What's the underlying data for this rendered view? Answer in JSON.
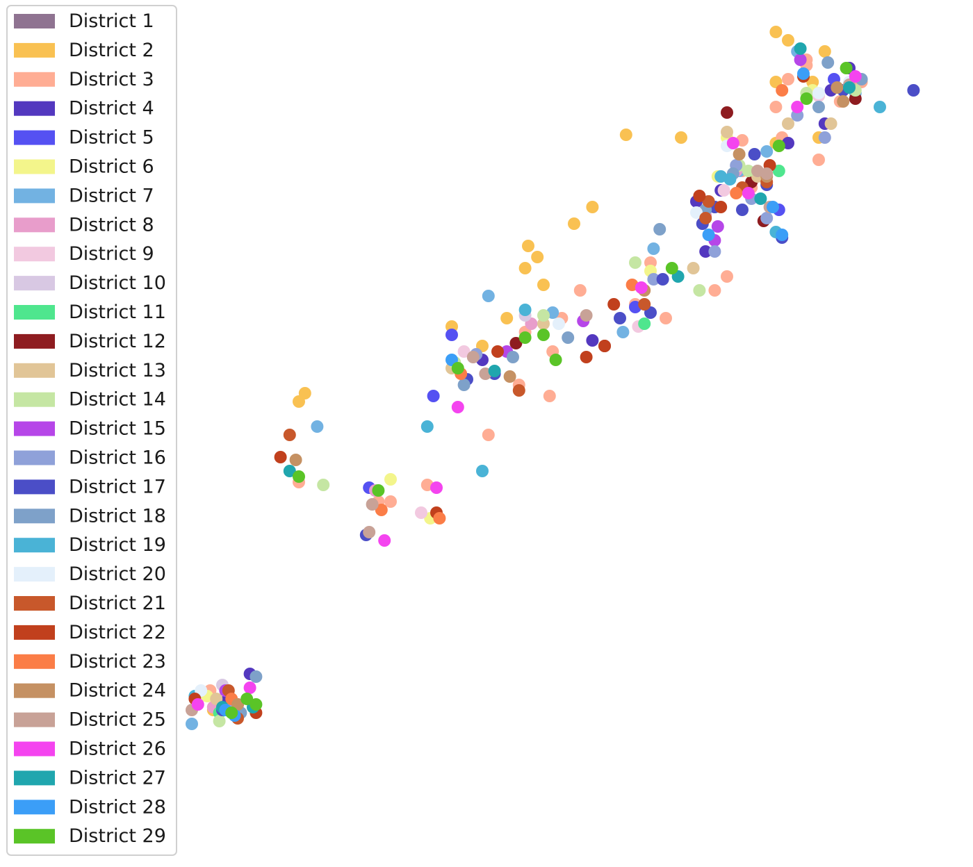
{
  "chart_data": {
    "type": "scatter",
    "title": "",
    "xlabel": "",
    "ylabel": "",
    "axes_visible": false,
    "grid": false,
    "legend": {
      "placement": "top-left",
      "marker": "rectangle"
    },
    "series": [
      {
        "name": "District 1",
        "color": "#8f7391",
        "points": []
      },
      {
        "name": "District 2",
        "color": "#f9c152",
        "points": [
          [
            0.2,
            0.9
          ],
          [
            3.2,
            12.3
          ],
          [
            3.0,
            12.0
          ],
          [
            8.0,
            14.7
          ],
          [
            9.8,
            15.0
          ],
          [
            9.0,
            14.0
          ],
          [
            10.5,
            17.6
          ],
          [
            12.6,
            19.0
          ],
          [
            10.4,
            16.8
          ],
          [
            10.8,
            17.2
          ],
          [
            12.0,
            18.4
          ],
          [
            13.7,
            21.6
          ],
          [
            11.0,
            16.2
          ],
          [
            15.5,
            21.5
          ],
          [
            18.6,
            25.3
          ],
          [
            19.0,
            25.0
          ],
          [
            18.6,
            23.5
          ],
          [
            20.2,
            24.6
          ],
          [
            18.6,
            21.3
          ],
          [
            19.8,
            23.5
          ],
          [
            20.0,
            21.5
          ]
        ]
      },
      {
        "name": "District 3",
        "color": "#ffad94",
        "points": [
          [
            0.1,
            1.6
          ],
          [
            3.0,
            9.1
          ],
          [
            5.6,
            8.4
          ],
          [
            6.0,
            8.4
          ],
          [
            7.2,
            9.0
          ],
          [
            9.2,
            10.8
          ],
          [
            10.2,
            12.6
          ],
          [
            10.4,
            14.5
          ],
          [
            11.6,
            15.0
          ],
          [
            14.0,
            15.5
          ],
          [
            15.0,
            15.0
          ],
          [
            11.3,
            13.8
          ],
          [
            11.2,
            12.2
          ],
          [
            12.2,
            16.0
          ],
          [
            14.5,
            17.0
          ],
          [
            16.2,
            18.4
          ],
          [
            17.5,
            21.4
          ],
          [
            17.8,
            19.7
          ],
          [
            17.5,
            20.3
          ],
          [
            18.6,
            22.6
          ],
          [
            19.6,
            24.3
          ],
          [
            18.8,
            21.5
          ],
          [
            21.0,
            24.0
          ],
          [
            19.0,
            23.6
          ],
          [
            17.0,
            16.5
          ],
          [
            16.6,
            16.0
          ],
          [
            19.6,
            24.1
          ],
          [
            20.0,
            20.7
          ],
          [
            20.7,
            22.8
          ],
          [
            21.4,
            23.5
          ]
        ]
      },
      {
        "name": "District 4",
        "color": "#5338bf",
        "points": [
          [
            0.6,
            1.2
          ],
          [
            1.4,
            2.2
          ],
          [
            9.0,
            13.5
          ],
          [
            16.0,
            19.2
          ],
          [
            16.8,
            19.6
          ],
          [
            19.0,
            21.3
          ],
          [
            20.4,
            23.2
          ],
          [
            20.2,
            22.0
          ],
          [
            21.0,
            24.0
          ],
          [
            12.6,
            14.2
          ],
          [
            16.3,
            17.4
          ]
        ]
      },
      {
        "name": "District 5",
        "color": "#5551f2",
        "points": [
          [
            5.3,
            8.9
          ],
          [
            8.0,
            14.4
          ],
          [
            7.4,
            12.2
          ],
          [
            14.0,
            15.4
          ],
          [
            20.5,
            23.6
          ],
          [
            18.7,
            18.9
          ]
        ]
      },
      {
        "name": "District 6",
        "color": "#f3f58b",
        "points": [
          [
            0.0,
            1.4
          ],
          [
            6.0,
            9.2
          ],
          [
            7.3,
            7.8
          ],
          [
            14.5,
            16.7
          ],
          [
            17.0,
            21.5
          ],
          [
            16.7,
            20.1
          ],
          [
            19.8,
            23.2
          ],
          [
            20.0,
            23.0
          ]
        ]
      },
      {
        "name": "District 7",
        "color": "#72b2e2",
        "points": [
          [
            -0.5,
            0.4
          ],
          [
            3.6,
            11.1
          ],
          [
            9.2,
            15.8
          ],
          [
            11.3,
            15.2
          ],
          [
            14.6,
            17.5
          ],
          [
            17.4,
            20.3
          ],
          [
            21.2,
            23.1
          ],
          [
            19.3,
            24.6
          ],
          [
            18.3,
            21.0
          ],
          [
            13.6,
            14.5
          ]
        ]
      },
      {
        "name": "District 8",
        "color": "#e89dcb",
        "points": [
          [
            0.2,
            1.0
          ],
          [
            5.5,
            8.8
          ],
          [
            10.6,
            14.8
          ],
          [
            16.3,
            18.7
          ],
          [
            17.3,
            20.3
          ]
        ]
      },
      {
        "name": "District 9",
        "color": "#f2c9e0",
        "points": [
          [
            7.0,
            8.0
          ],
          [
            8.4,
            13.8
          ],
          [
            14.1,
            14.7
          ],
          [
            16.9,
            19.6
          ],
          [
            20.0,
            23.0
          ]
        ]
      },
      {
        "name": "District 10",
        "color": "#d8c8e3",
        "points": [
          [
            0.5,
            1.8
          ],
          [
            10.4,
            15.1
          ]
        ]
      },
      {
        "name": "District 11",
        "color": "#4fe68e",
        "points": [
          [
            0.4,
            0.8
          ],
          [
            14.3,
            14.8
          ],
          [
            18.7,
            20.3
          ]
        ]
      },
      {
        "name": "District 12",
        "color": "#8e1c20",
        "points": [
          [
            1.0,
            1.1
          ],
          [
            10.1,
            14.1
          ],
          [
            17.0,
            22.4
          ],
          [
            21.2,
            22.9
          ],
          [
            17.8,
            19.9
          ],
          [
            18.2,
            18.5
          ],
          [
            13.0,
            14.0
          ]
        ]
      },
      {
        "name": "District 13",
        "color": "#e1c597",
        "points": [
          [
            0.3,
            1.3
          ],
          [
            8.0,
            13.2
          ],
          [
            11.0,
            14.8
          ],
          [
            15.9,
            16.8
          ],
          [
            17.0,
            21.7
          ],
          [
            18.0,
            20.1
          ],
          [
            19.0,
            22.0
          ],
          [
            20.4,
            22.0
          ]
        ]
      },
      {
        "name": "District 14",
        "color": "#c5e6a3",
        "points": [
          [
            0.4,
            0.5
          ],
          [
            3.8,
            9.0
          ],
          [
            8.1,
            13.4
          ],
          [
            11.0,
            15.1
          ],
          [
            14.0,
            17.0
          ],
          [
            16.6,
            19.0
          ],
          [
            17.4,
            20.5
          ],
          [
            17.7,
            20.3
          ],
          [
            21.2,
            23.2
          ],
          [
            19.6,
            23.1
          ],
          [
            16.1,
            16.0
          ]
        ]
      },
      {
        "name": "District 15",
        "color": "#b646e8",
        "points": [
          [
            0.6,
            1.6
          ],
          [
            9.8,
            13.8
          ],
          [
            16.6,
            17.8
          ],
          [
            16.7,
            18.3
          ],
          [
            16.4,
            19.2
          ],
          [
            12.3,
            14.9
          ],
          [
            19.4,
            24.3
          ]
        ]
      },
      {
        "name": "District 16",
        "color": "#8fa1d9",
        "points": [
          [
            0.8,
            1.0
          ],
          [
            8.8,
            13.7
          ],
          [
            14.6,
            16.4
          ],
          [
            17.3,
            20.5
          ],
          [
            19.3,
            22.3
          ],
          [
            16.6,
            17.4
          ],
          [
            17.8,
            19.3
          ],
          [
            18.3,
            18.6
          ],
          [
            20.2,
            21.5
          ],
          [
            21.0,
            23.4
          ]
        ]
      },
      {
        "name": "District 17",
        "color": "#4b4ec7",
        "points": [
          [
            0.5,
            0.9
          ],
          [
            5.2,
            7.2
          ],
          [
            8.5,
            12.8
          ],
          [
            9.4,
            13.0
          ],
          [
            14.9,
            16.4
          ],
          [
            16.2,
            18.4
          ],
          [
            16.6,
            19.0
          ],
          [
            17.5,
            18.9
          ],
          [
            17.9,
            20.9
          ],
          [
            18.3,
            19.8
          ],
          [
            18.8,
            17.9
          ],
          [
            20.8,
            23.2
          ],
          [
            23.1,
            23.2
          ],
          [
            13.5,
            15.0
          ],
          [
            14.5,
            15.2
          ]
        ]
      },
      {
        "name": "District 18",
        "color": "#7ea1c9",
        "points": [
          [
            1.1,
            0.8
          ],
          [
            1.6,
            2.1
          ],
          [
            8.4,
            12.6
          ],
          [
            10.0,
            13.6
          ],
          [
            11.8,
            14.3
          ],
          [
            17.2,
            20.2
          ],
          [
            20.3,
            24.2
          ],
          [
            21.4,
            23.6
          ],
          [
            16.3,
            18.9
          ],
          [
            20.0,
            22.6
          ],
          [
            14.8,
            18.2
          ]
        ]
      },
      {
        "name": "District 19",
        "color": "#4ab3d6",
        "points": [
          [
            -0.4,
            1.4
          ],
          [
            7.2,
            11.1
          ],
          [
            10.4,
            15.3
          ],
          [
            16.8,
            20.1
          ],
          [
            17.1,
            20.0
          ],
          [
            18.6,
            18.1
          ],
          [
            22.0,
            22.6
          ],
          [
            9.0,
            9.5
          ]
        ]
      },
      {
        "name": "District 20",
        "color": "#e4f0fb",
        "points": [
          [
            -0.2,
            1.6
          ],
          [
            11.5,
            14.8
          ],
          [
            16.0,
            18.8
          ],
          [
            17.0,
            21.2
          ],
          [
            21.0,
            23.5
          ],
          [
            20.0,
            23.1
          ]
        ]
      },
      {
        "name": "District 21",
        "color": "#c8582b",
        "points": [
          [
            0.7,
            1.6
          ],
          [
            1.0,
            0.6
          ],
          [
            2.7,
            10.8
          ],
          [
            10.2,
            12.4
          ],
          [
            14.3,
            15.5
          ],
          [
            16.3,
            18.6
          ],
          [
            17.5,
            19.7
          ],
          [
            18.3,
            19.9
          ],
          [
            16.4,
            19.2
          ]
        ]
      },
      {
        "name": "District 22",
        "color": "#c1401d",
        "points": [
          [
            -0.4,
            1.3
          ],
          [
            1.6,
            0.8
          ],
          [
            2.4,
            10.0
          ],
          [
            7.5,
            8.0
          ],
          [
            9.5,
            13.8
          ],
          [
            12.4,
            13.6
          ],
          [
            13.3,
            15.5
          ],
          [
            16.1,
            19.4
          ],
          [
            16.8,
            19.0
          ],
          [
            18.4,
            20.5
          ],
          [
            19.5,
            23.7
          ],
          [
            13.0,
            14.0
          ]
        ]
      },
      {
        "name": "District 23",
        "color": "#fb7d47",
        "points": [
          [
            0.8,
            1.3
          ],
          [
            5.7,
            8.1
          ],
          [
            8.3,
            13.0
          ],
          [
            13.9,
            16.2
          ],
          [
            17.3,
            19.5
          ],
          [
            18.8,
            23.2
          ],
          [
            7.6,
            7.8
          ]
        ]
      },
      {
        "name": "District 24",
        "color": "#c59163",
        "points": [
          [
            1.0,
            1.1
          ],
          [
            2.9,
            9.9
          ],
          [
            9.9,
            12.9
          ],
          [
            14.3,
            16.0
          ],
          [
            17.4,
            20.9
          ],
          [
            18.3,
            20.1
          ],
          [
            20.6,
            23.3
          ],
          [
            20.8,
            22.8
          ]
        ]
      },
      {
        "name": "District 25",
        "color": "#c8a297",
        "points": [
          [
            -0.5,
            0.9
          ],
          [
            5.4,
            8.3
          ],
          [
            5.3,
            7.3
          ],
          [
            8.7,
            13.6
          ],
          [
            9.1,
            13.0
          ],
          [
            12.4,
            15.1
          ],
          [
            18.0,
            20.3
          ],
          [
            18.4,
            19.0
          ],
          [
            18.3,
            20.2
          ],
          [
            21.0,
            23.4
          ]
        ]
      },
      {
        "name": "District 26",
        "color": "#f444ef",
        "points": [
          [
            -0.3,
            1.1
          ],
          [
            1.4,
            1.7
          ],
          [
            5.8,
            7.0
          ],
          [
            8.2,
            11.8
          ],
          [
            7.5,
            8.9
          ],
          [
            14.2,
            16.1
          ],
          [
            17.2,
            21.3
          ],
          [
            17.7,
            19.5
          ],
          [
            21.2,
            23.7
          ],
          [
            19.3,
            22.6
          ]
        ]
      },
      {
        "name": "District 27",
        "color": "#20a6ae",
        "points": [
          [
            1.5,
            1.0
          ],
          [
            0.5,
            1.0
          ],
          [
            2.7,
            9.5
          ],
          [
            9.4,
            13.1
          ],
          [
            15.4,
            16.5
          ],
          [
            18.1,
            19.3
          ],
          [
            21.0,
            23.3
          ],
          [
            19.4,
            24.7
          ]
        ]
      },
      {
        "name": "District 28",
        "color": "#3b9ef7",
        "points": [
          [
            0.9,
            0.7
          ],
          [
            0.6,
            0.9
          ],
          [
            8.0,
            13.5
          ],
          [
            18.5,
            19.0
          ],
          [
            18.8,
            18.0
          ],
          [
            19.5,
            23.8
          ],
          [
            16.4,
            18.0
          ]
        ]
      },
      {
        "name": "District 29",
        "color": "#5ac427",
        "points": [
          [
            1.6,
            1.1
          ],
          [
            1.3,
            1.3
          ],
          [
            3.0,
            9.3
          ],
          [
            8.2,
            13.2
          ],
          [
            10.4,
            14.3
          ],
          [
            11.0,
            14.4
          ],
          [
            11.4,
            13.5
          ],
          [
            15.2,
            16.8
          ],
          [
            5.6,
            8.8
          ],
          [
            18.7,
            21.2
          ],
          [
            19.6,
            22.9
          ],
          [
            20.9,
            24.0
          ],
          [
            0.8,
            0.8
          ]
        ]
      }
    ]
  }
}
